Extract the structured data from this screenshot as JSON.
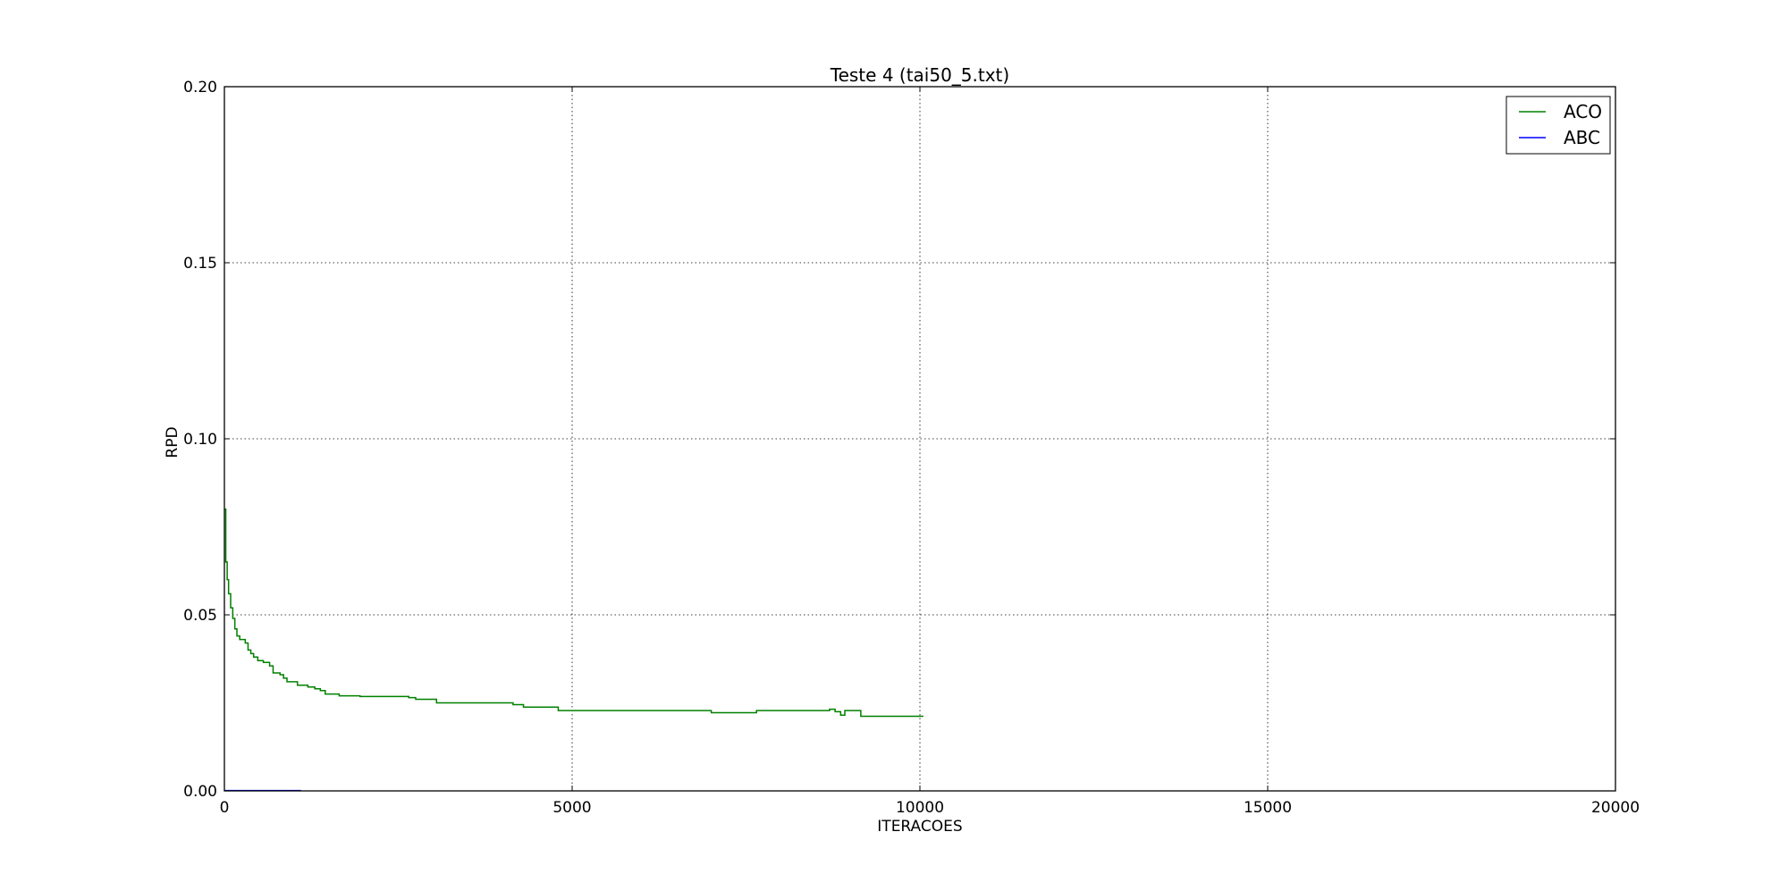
{
  "chart_data": {
    "type": "line",
    "title": "Teste 4 (tai50_5.txt)",
    "xlabel": "ITERACOES",
    "ylabel": "RPD",
    "xlim": [
      0,
      20000
    ],
    "ylim": [
      0,
      0.2
    ],
    "xticks": [
      0,
      5000,
      10000,
      15000,
      20000
    ],
    "xtick_labels": [
      "0",
      "5000",
      "10000",
      "15000",
      "20000"
    ],
    "yticks": [
      0,
      0.05,
      0.1,
      0.15,
      0.2
    ],
    "ytick_labels": [
      "0.00",
      "0.05",
      "0.10",
      "0.15",
      "0.20"
    ],
    "grid": true,
    "legend_position": "top-right",
    "series": [
      {
        "name": "ACO",
        "color": "#008000",
        "step": true,
        "points": [
          [
            0,
            0.08
          ],
          [
            20,
            0.065
          ],
          [
            40,
            0.06
          ],
          [
            60,
            0.056
          ],
          [
            90,
            0.052
          ],
          [
            120,
            0.049
          ],
          [
            150,
            0.046
          ],
          [
            180,
            0.044
          ],
          [
            220,
            0.043
          ],
          [
            300,
            0.042
          ],
          [
            340,
            0.04
          ],
          [
            380,
            0.039
          ],
          [
            420,
            0.038
          ],
          [
            480,
            0.037
          ],
          [
            560,
            0.0365
          ],
          [
            650,
            0.0355
          ],
          [
            700,
            0.0335
          ],
          [
            800,
            0.033
          ],
          [
            850,
            0.032
          ],
          [
            900,
            0.031
          ],
          [
            1050,
            0.03
          ],
          [
            1200,
            0.0295
          ],
          [
            1300,
            0.029
          ],
          [
            1380,
            0.0285
          ],
          [
            1450,
            0.0275
          ],
          [
            1650,
            0.027
          ],
          [
            1950,
            0.0268
          ],
          [
            2650,
            0.0265
          ],
          [
            2750,
            0.026
          ],
          [
            3050,
            0.025
          ],
          [
            4150,
            0.0245
          ],
          [
            4300,
            0.0238
          ],
          [
            4800,
            0.0228
          ],
          [
            7000,
            0.0222
          ],
          [
            7650,
            0.0228
          ],
          [
            8700,
            0.0232
          ],
          [
            8780,
            0.0225
          ],
          [
            8860,
            0.0215
          ],
          [
            8920,
            0.0228
          ],
          [
            9150,
            0.0212
          ],
          [
            10050,
            0.0212
          ]
        ]
      },
      {
        "name": "ABC",
        "color": "#0000ff",
        "step": false,
        "points": [
          [
            0,
            0.0001
          ],
          [
            1100,
            0.0001
          ]
        ]
      }
    ]
  }
}
